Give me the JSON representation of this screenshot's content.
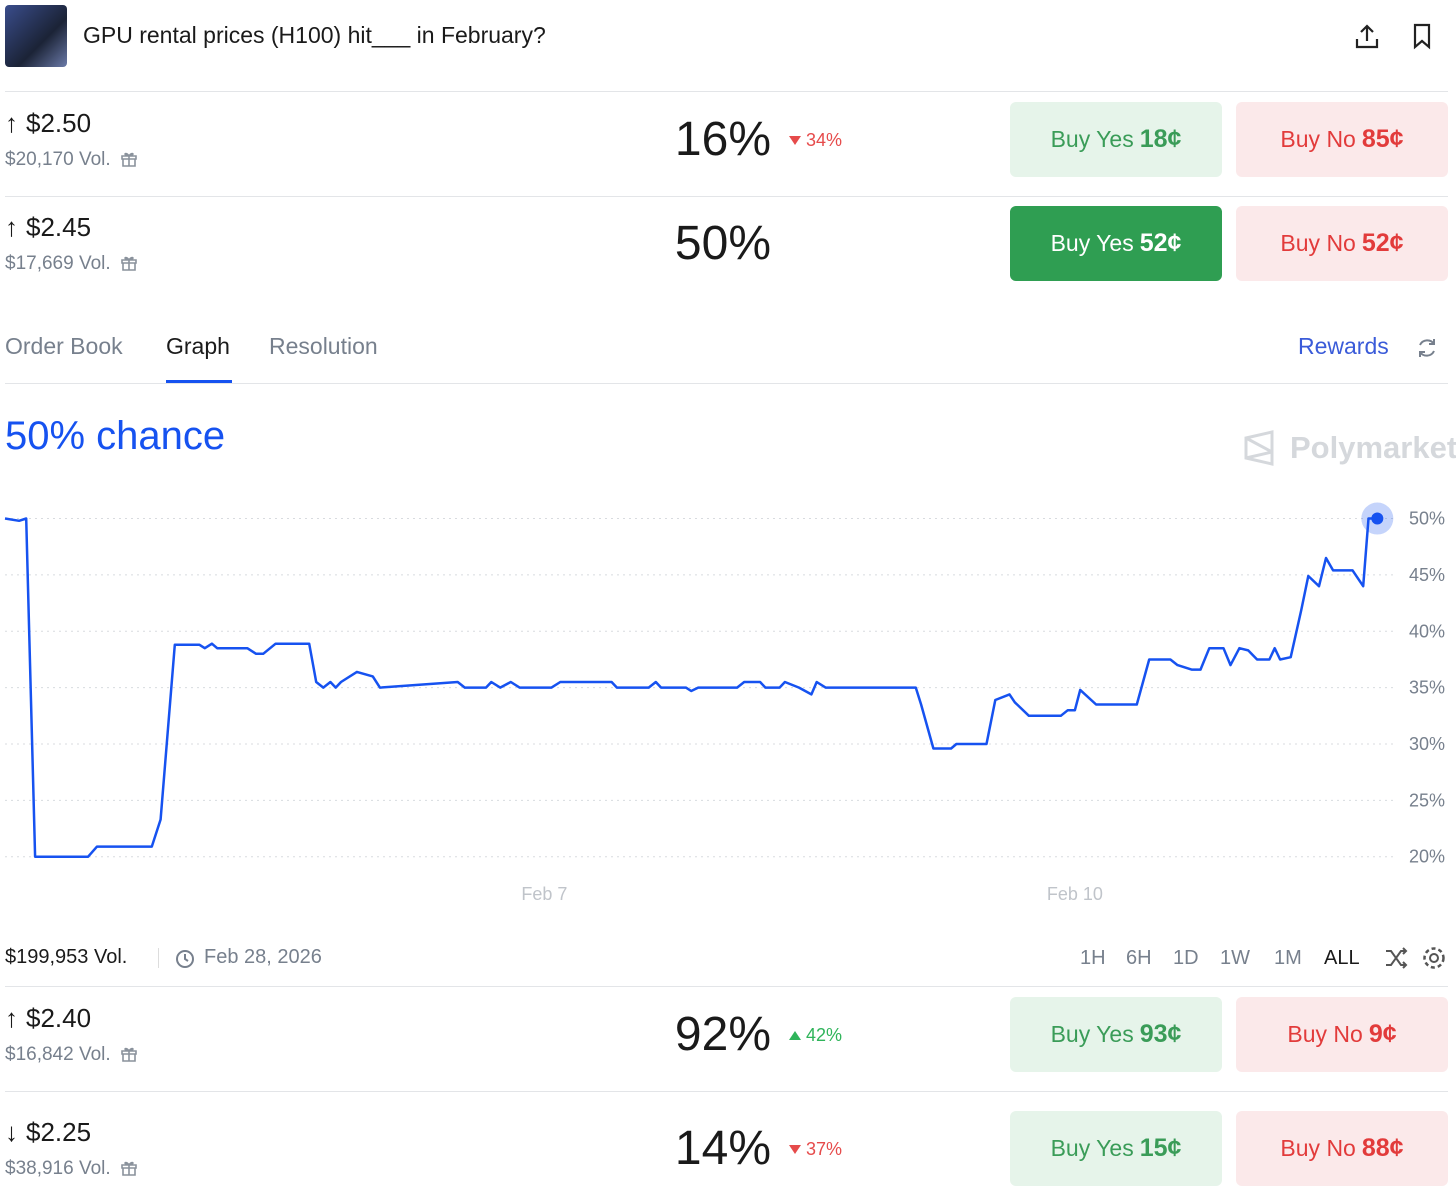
{
  "header": {
    "title": "GPU rental prices (H100) hit___ in February?"
  },
  "markets": [
    {
      "direction": "↑",
      "label": "$2.50",
      "volume": "$20,170 Vol.",
      "chance": "16%",
      "change": "34%",
      "change_dir": "down",
      "yes_label": "Buy Yes",
      "yes_price": "18¢",
      "no_label": "Buy No",
      "no_price": "85¢",
      "selected": false
    },
    {
      "direction": "↑",
      "label": "$2.45",
      "volume": "$17,669 Vol.",
      "chance": "50%",
      "yes_label": "Buy Yes",
      "yes_price": "52¢",
      "no_label": "Buy No",
      "no_price": "52¢",
      "selected": true
    }
  ],
  "tabs": {
    "items": [
      "Order Book",
      "Graph",
      "Resolution"
    ],
    "active": 1,
    "rewards": "Rewards"
  },
  "graph": {
    "type": "line",
    "headline": "50% chance",
    "watermark": "Polymarket",
    "color": "#1652f0",
    "x": [
      3.95,
      4.03,
      4.07,
      4.12,
      4.42,
      4.47,
      4.78,
      4.83,
      4.91,
      5.05,
      5.08,
      5.12,
      5.15,
      5.32,
      5.37,
      5.41,
      5.48,
      5.67,
      5.71,
      5.75,
      5.79,
      5.82,
      5.85,
      5.94,
      6.03,
      6.07,
      6.51,
      6.55,
      6.67,
      6.7,
      6.75,
      6.81,
      6.86,
      7.04,
      7.09,
      7.38,
      7.41,
      7.59,
      7.63,
      7.66,
      7.8,
      7.83,
      7.87,
      8.09,
      8.13,
      8.22,
      8.25,
      8.33,
      8.36,
      8.44,
      8.51,
      8.54,
      8.59,
      9.1,
      9.13,
      9.2,
      9.3,
      9.33,
      9.5,
      9.55,
      9.63,
      9.66,
      9.74,
      9.92,
      9.96,
      10.0,
      10.03,
      10.12,
      10.35,
      10.42,
      10.54,
      10.58,
      10.66,
      10.71,
      10.76,
      10.84,
      10.88,
      10.93,
      10.98,
      11.03,
      11.1,
      11.13,
      11.16,
      11.22,
      11.28,
      11.32,
      11.38,
      11.42,
      11.46,
      11.57,
      11.63,
      11.66,
      11.71
    ],
    "values": [
      50,
      49.8,
      50,
      20,
      20,
      20.9,
      20.9,
      23.3,
      38.8,
      38.8,
      38.5,
      38.9,
      38.5,
      38.5,
      38,
      38,
      38.9,
      38.9,
      35.5,
      35,
      35.5,
      35,
      35.5,
      36.4,
      36,
      35,
      35.5,
      35,
      35,
      35.5,
      35,
      35.5,
      35,
      35,
      35.5,
      35.5,
      35,
      35,
      35.5,
      35,
      35,
      34.7,
      35,
      35,
      35.5,
      35.5,
      35,
      35,
      35.5,
      35,
      34.4,
      35.5,
      35,
      35,
      33.5,
      29.6,
      29.6,
      30,
      30,
      33.9,
      34.4,
      33.7,
      32.5,
      32.5,
      33,
      33,
      34.8,
      33.5,
      33.5,
      37.5,
      37.5,
      37,
      36.6,
      36.6,
      38.5,
      38.5,
      37,
      38.5,
      38.3,
      37.5,
      37.5,
      38.5,
      37.5,
      37.7,
      41.9,
      44.9,
      44,
      46.5,
      45.4,
      45.4,
      44,
      50,
      50
    ],
    "xlim": [
      3.95,
      11.81
    ],
    "ylim": [
      19,
      52
    ],
    "xticks": [
      {
        "value": 7,
        "label": "Feb 7"
      },
      {
        "value": 10,
        "label": "Feb 10"
      }
    ],
    "yticks": [
      {
        "value": 20,
        "label": "20%"
      },
      {
        "value": 25,
        "label": "25%"
      },
      {
        "value": 30,
        "label": "30%"
      },
      {
        "value": 35,
        "label": "35%"
      },
      {
        "value": 40,
        "label": "40%"
      },
      {
        "value": 45,
        "label": "45%"
      },
      {
        "value": 50,
        "label": "50%"
      }
    ],
    "grid": true
  },
  "footer": {
    "volume": "$199,953 Vol.",
    "end_date": "Feb 28, 2026",
    "ranges": [
      "1H",
      "6H",
      "1D",
      "1W",
      "1M",
      "ALL"
    ],
    "active_range": 5
  },
  "more_markets": [
    {
      "direction": "↑",
      "label": "$2.40",
      "volume": "$16,842 Vol.",
      "chance": "92%",
      "change": "42%",
      "change_dir": "up",
      "yes_label": "Buy Yes",
      "yes_price": "93¢",
      "no_label": "Buy No",
      "no_price": "9¢",
      "selected": false
    },
    {
      "direction": "↓",
      "label": "$2.25",
      "volume": "$38,916 Vol.",
      "chance": "14%",
      "change": "37%",
      "change_dir": "down",
      "yes_label": "Buy Yes",
      "yes_price": "15¢",
      "no_label": "Buy No",
      "no_price": "88¢",
      "selected": false
    }
  ]
}
